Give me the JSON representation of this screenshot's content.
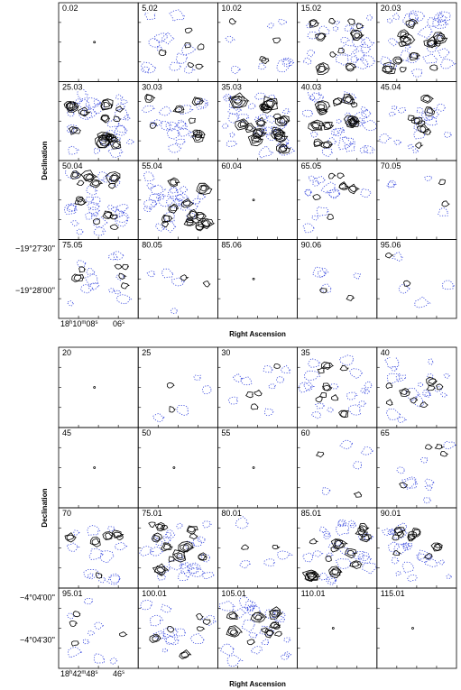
{
  "maps": [
    {
      "panel_labels": [
        "0.02",
        "5.02",
        "10.02",
        "15.02",
        "20.03",
        "25.03",
        "30.03",
        "35.03",
        "40.03",
        "45.04",
        "50.04",
        "55.04",
        "60.04",
        "65.05",
        "70.05",
        "75.05",
        "80.05",
        "85.06",
        "90.06",
        "95.06"
      ],
      "y_axis_label": "Declination",
      "x_axis_label": "Right Ascension",
      "dec_ticks": [
        "−19°27'30''",
        "−19°28'00''"
      ],
      "ra_ticks": [
        "18h10m08s",
        "06s"
      ]
    },
    {
      "panel_labels": [
        "20",
        "25",
        "30",
        "35",
        "40",
        "45",
        "50",
        "55",
        "60",
        "65",
        "70",
        "75.01",
        "80.01",
        "85.01",
        "90.01",
        "95.01",
        "100.01",
        "105.01",
        "110.01",
        "115.01"
      ],
      "y_axis_label": "Declination",
      "x_axis_label": "Right Ascension",
      "dec_ticks": [
        "−4°04'00''",
        "−4°04'30''"
      ],
      "ra_ticks": [
        "18h42m48s",
        "46s"
      ]
    }
  ]
}
